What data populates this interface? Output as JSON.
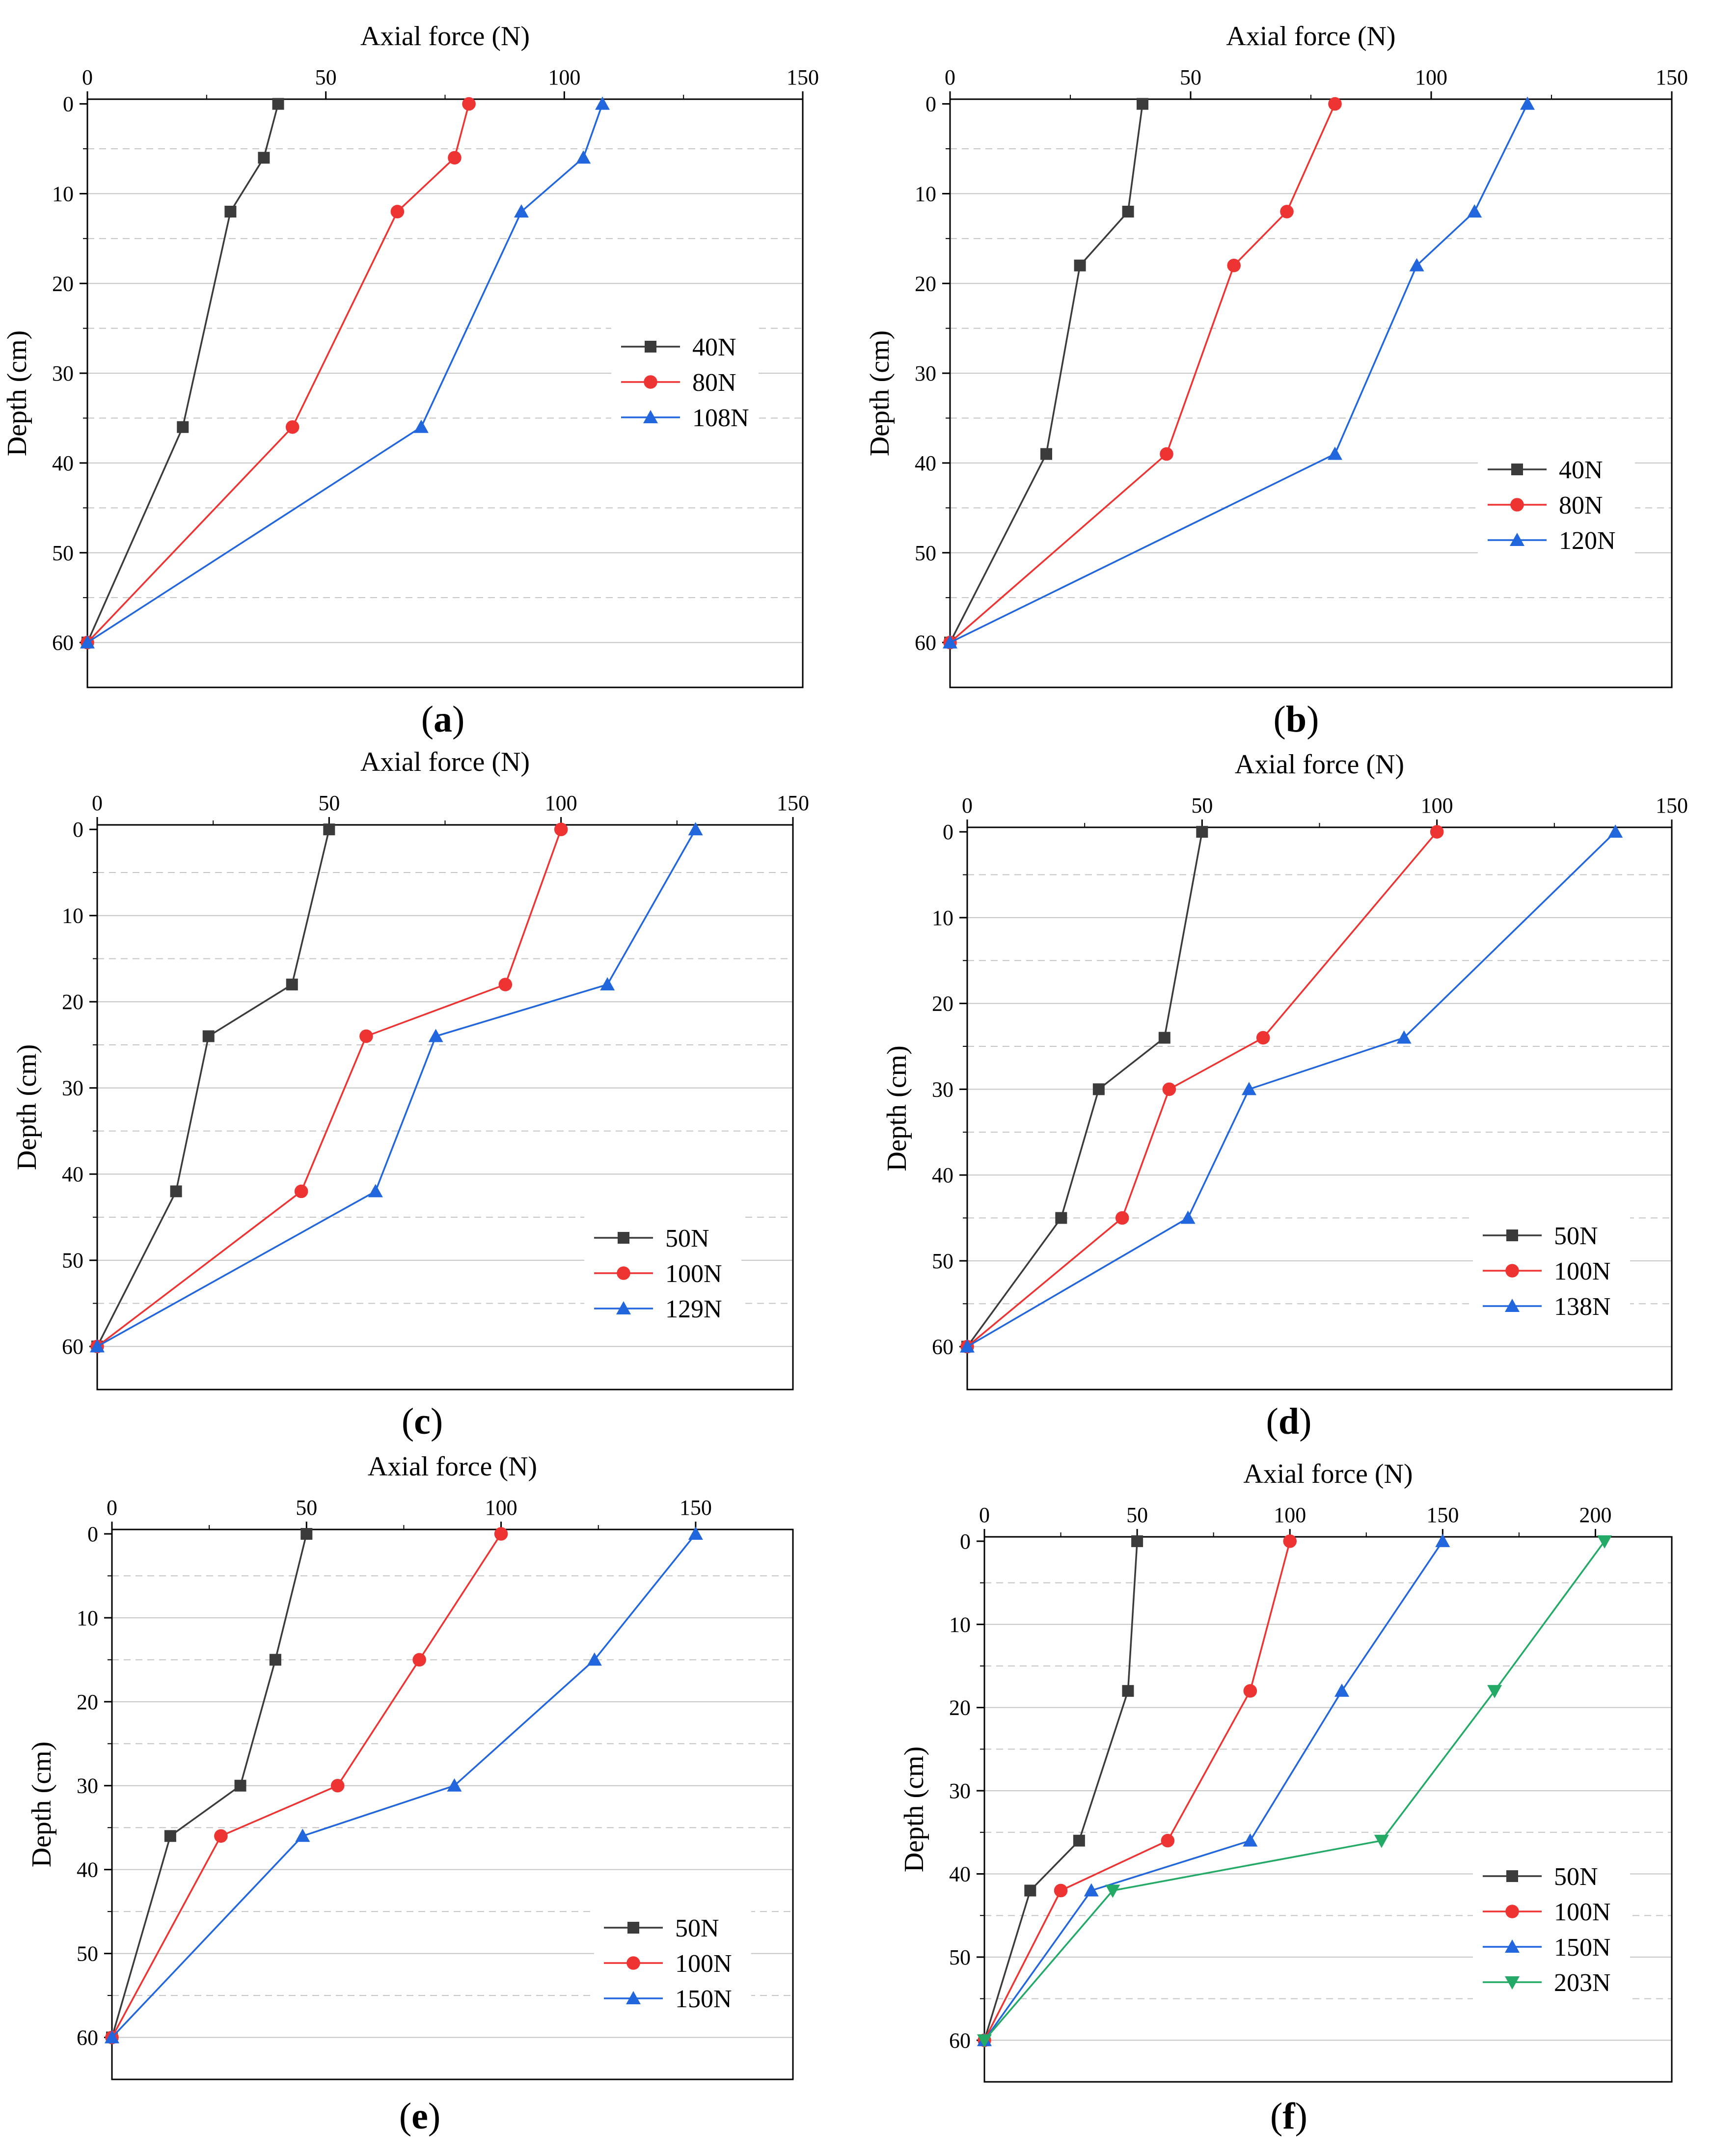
{
  "figure": {
    "x_axis_label": "Axial force (N)",
    "y_axis_label": "Depth (cm)"
  },
  "colors": {
    "black": "#3b3b3b",
    "red": "#ee3333",
    "blue": "#2266dd",
    "green": "#22aa66"
  },
  "chart_data": [
    {
      "type": "line",
      "caption": "(a)",
      "caption_letter": "a",
      "xlabel": "Axial force (N)",
      "ylabel": "Depth (cm)",
      "xlim": [
        0,
        150
      ],
      "ylim": [
        0,
        65
      ],
      "xticks": [
        0,
        50,
        100,
        150
      ],
      "yticks": [
        0,
        10,
        20,
        30,
        40,
        50,
        60
      ],
      "y_reversed": true,
      "x_axis_position": "top",
      "grid": "horizontal dashed",
      "legend_position": "middle-right",
      "series": [
        {
          "name": "40N",
          "color": "#3b3b3b",
          "marker": "square",
          "points": [
            [
              40,
              0
            ],
            [
              37,
              6
            ],
            [
              30,
              12
            ],
            [
              20,
              36
            ],
            [
              0,
              60
            ]
          ]
        },
        {
          "name": "80N",
          "color": "#ee3333",
          "marker": "circle",
          "points": [
            [
              80,
              0
            ],
            [
              77,
              6
            ],
            [
              65,
              12
            ],
            [
              43,
              36
            ],
            [
              0,
              60
            ]
          ]
        },
        {
          "name": "108N",
          "color": "#2266dd",
          "marker": "triangle-up",
          "points": [
            [
              108,
              0
            ],
            [
              104,
              6
            ],
            [
              91,
              12
            ],
            [
              70,
              36
            ],
            [
              0,
              60
            ]
          ]
        }
      ]
    },
    {
      "type": "line",
      "caption": "(b)",
      "caption_letter": "b",
      "xlabel": "Axial force (N)",
      "ylabel": "Depth (cm)",
      "xlim": [
        0,
        150
      ],
      "ylim": [
        0,
        65
      ],
      "xticks": [
        0,
        50,
        100,
        150
      ],
      "yticks": [
        0,
        10,
        20,
        30,
        40,
        50,
        60
      ],
      "y_reversed": true,
      "x_axis_position": "top",
      "grid": "horizontal dashed",
      "legend_position": "bottom-right",
      "series": [
        {
          "name": "40N",
          "color": "#3b3b3b",
          "marker": "square",
          "points": [
            [
              40,
              0
            ],
            [
              37,
              12
            ],
            [
              27,
              18
            ],
            [
              20,
              39
            ],
            [
              0,
              60
            ]
          ]
        },
        {
          "name": "80N",
          "color": "#ee3333",
          "marker": "circle",
          "points": [
            [
              80,
              0
            ],
            [
              70,
              12
            ],
            [
              59,
              18
            ],
            [
              45,
              39
            ],
            [
              0,
              60
            ]
          ]
        },
        {
          "name": "120N",
          "color": "#2266dd",
          "marker": "triangle-up",
          "points": [
            [
              120,
              0
            ],
            [
              109,
              12
            ],
            [
              97,
              18
            ],
            [
              80,
              39
            ],
            [
              0,
              60
            ]
          ]
        }
      ]
    },
    {
      "type": "line",
      "caption": "(c)",
      "caption_letter": "c",
      "xlabel": "Axial force (N)",
      "ylabel": "Depth (cm)",
      "xlim": [
        0,
        150
      ],
      "ylim": [
        0,
        65
      ],
      "xticks": [
        0,
        50,
        100,
        150
      ],
      "yticks": [
        0,
        10,
        20,
        30,
        40,
        50,
        60
      ],
      "y_reversed": true,
      "x_axis_position": "top",
      "grid": "horizontal dashed",
      "legend_position": "bottom-right",
      "series": [
        {
          "name": "50N",
          "color": "#3b3b3b",
          "marker": "square",
          "points": [
            [
              50,
              0
            ],
            [
              42,
              18
            ],
            [
              24,
              24
            ],
            [
              17,
              42
            ],
            [
              0,
              60
            ]
          ]
        },
        {
          "name": "100N",
          "color": "#ee3333",
          "marker": "circle",
          "points": [
            [
              100,
              0
            ],
            [
              88,
              18
            ],
            [
              58,
              24
            ],
            [
              44,
              42
            ],
            [
              0,
              60
            ]
          ]
        },
        {
          "name": "129N",
          "color": "#2266dd",
          "marker": "triangle-up",
          "points": [
            [
              129,
              0
            ],
            [
              110,
              18
            ],
            [
              73,
              24
            ],
            [
              60,
              42
            ],
            [
              0,
              60
            ]
          ]
        }
      ]
    },
    {
      "type": "line",
      "caption": "(d)",
      "caption_letter": "d",
      "xlabel": "Axial force (N)",
      "ylabel": "Depth (cm)",
      "xlim": [
        0,
        150
      ],
      "ylim": [
        0,
        65
      ],
      "xticks": [
        0,
        50,
        100,
        150
      ],
      "yticks": [
        0,
        10,
        20,
        30,
        40,
        50,
        60
      ],
      "y_reversed": true,
      "x_axis_position": "top",
      "grid": "horizontal dashed",
      "legend_position": "bottom-right",
      "series": [
        {
          "name": "50N",
          "color": "#3b3b3b",
          "marker": "square",
          "points": [
            [
              50,
              0
            ],
            [
              42,
              24
            ],
            [
              28,
              30
            ],
            [
              20,
              45
            ],
            [
              0,
              60
            ]
          ]
        },
        {
          "name": "100N",
          "color": "#ee3333",
          "marker": "circle",
          "points": [
            [
              100,
              0
            ],
            [
              63,
              24
            ],
            [
              43,
              30
            ],
            [
              33,
              45
            ],
            [
              0,
              60
            ]
          ]
        },
        {
          "name": "138N",
          "color": "#2266dd",
          "marker": "triangle-up",
          "points": [
            [
              138,
              0
            ],
            [
              93,
              24
            ],
            [
              60,
              30
            ],
            [
              47,
              45
            ],
            [
              0,
              60
            ]
          ]
        }
      ]
    },
    {
      "type": "line",
      "caption": "(e)",
      "caption_letter": "e",
      "xlabel": "Axial force (N)",
      "ylabel": "Depth (cm)",
      "xlim": [
        0,
        175
      ],
      "ylim": [
        0,
        65
      ],
      "xticks": [
        0,
        50,
        100,
        150
      ],
      "yticks": [
        0,
        10,
        20,
        30,
        40,
        50,
        60
      ],
      "y_reversed": true,
      "x_axis_position": "top",
      "grid": "horizontal dashed",
      "legend_position": "bottom-right",
      "series": [
        {
          "name": "50N",
          "color": "#3b3b3b",
          "marker": "square",
          "points": [
            [
              50,
              0
            ],
            [
              42,
              15
            ],
            [
              33,
              30
            ],
            [
              15,
              36
            ],
            [
              0,
              60
            ]
          ]
        },
        {
          "name": "100N",
          "color": "#ee3333",
          "marker": "circle",
          "points": [
            [
              100,
              0
            ],
            [
              79,
              15
            ],
            [
              58,
              30
            ],
            [
              28,
              36
            ],
            [
              0,
              60
            ]
          ]
        },
        {
          "name": "150N",
          "color": "#2266dd",
          "marker": "triangle-up",
          "points": [
            [
              150,
              0
            ],
            [
              124,
              15
            ],
            [
              88,
              30
            ],
            [
              49,
              36
            ],
            [
              0,
              60
            ]
          ]
        }
      ]
    },
    {
      "type": "line",
      "caption": "(f)",
      "caption_letter": "f",
      "xlabel": "Axial force (N)",
      "ylabel": "Depth (cm)",
      "xlim": [
        0,
        225
      ],
      "ylim": [
        0,
        65
      ],
      "xticks": [
        0,
        50,
        100,
        150,
        200
      ],
      "yticks": [
        0,
        10,
        20,
        30,
        40,
        50,
        60
      ],
      "y_reversed": true,
      "x_axis_position": "top",
      "grid": "horizontal dashed",
      "legend_position": "bottom-right",
      "series": [
        {
          "name": "50N",
          "color": "#3b3b3b",
          "marker": "square",
          "points": [
            [
              50,
              0
            ],
            [
              47,
              18
            ],
            [
              31,
              36
            ],
            [
              15,
              42
            ],
            [
              0,
              60
            ]
          ]
        },
        {
          "name": "100N",
          "color": "#ee3333",
          "marker": "circle",
          "points": [
            [
              100,
              0
            ],
            [
              87,
              18
            ],
            [
              60,
              36
            ],
            [
              25,
              42
            ],
            [
              0,
              60
            ]
          ]
        },
        {
          "name": "150N",
          "color": "#2266dd",
          "marker": "triangle-up",
          "points": [
            [
              150,
              0
            ],
            [
              117,
              18
            ],
            [
              87,
              36
            ],
            [
              35,
              42
            ],
            [
              0,
              60
            ]
          ]
        },
        {
          "name": "203N",
          "color": "#22aa66",
          "marker": "triangle-down",
          "points": [
            [
              203,
              0
            ],
            [
              167,
              18
            ],
            [
              130,
              36
            ],
            [
              42,
              42
            ],
            [
              0,
              60
            ]
          ]
        }
      ]
    }
  ]
}
